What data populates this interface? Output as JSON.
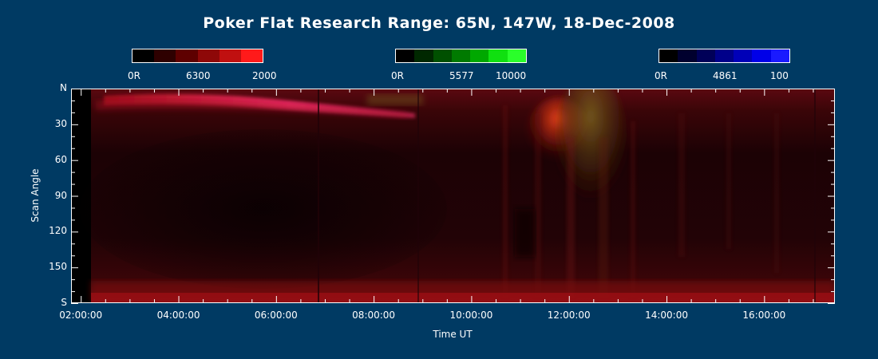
{
  "chart_data": {
    "type": "heatmap",
    "title": "Poker Flat Research Range: 65N, 147W, 18-Dec-2008",
    "xlabel": "Time UT",
    "ylabel": "Scan Angle",
    "x_ticks": [
      "02:00:00",
      "04:00:00",
      "06:00:00",
      "08:00:00",
      "10:00:00",
      "12:00:00",
      "14:00:00",
      "16:00:00"
    ],
    "x_tick_hours": [
      2,
      4,
      6,
      8,
      10,
      12,
      14,
      16
    ],
    "xlim_hours": [
      1.8,
      17.45
    ],
    "y_ticks": [
      "N",
      "30",
      "60",
      "90",
      "120",
      "150",
      "S"
    ],
    "y_tick_values": [
      0,
      30,
      60,
      90,
      120,
      150,
      180
    ],
    "ylim": [
      0,
      180
    ],
    "colorbars": [
      {
        "name": "6300",
        "min_label": "0R",
        "max_label": "2000",
        "colors": [
          "#000000",
          "#2e0000",
          "#5e0000",
          "#8e0808",
          "#c01010",
          "#ff1a1a"
        ]
      },
      {
        "name": "5577",
        "min_label": "0R",
        "max_label": "10000",
        "colors": [
          "#000000",
          "#002800",
          "#005000",
          "#007a00",
          "#00a800",
          "#10e010",
          "#2aff2a"
        ]
      },
      {
        "name": "4861",
        "min_label": "0R",
        "max_label": "100",
        "colors": [
          "#000000",
          "#00002e",
          "#000058",
          "#00008a",
          "#0000b8",
          "#0000e8",
          "#1a1aff"
        ]
      }
    ],
    "background_color": "#003a63"
  }
}
